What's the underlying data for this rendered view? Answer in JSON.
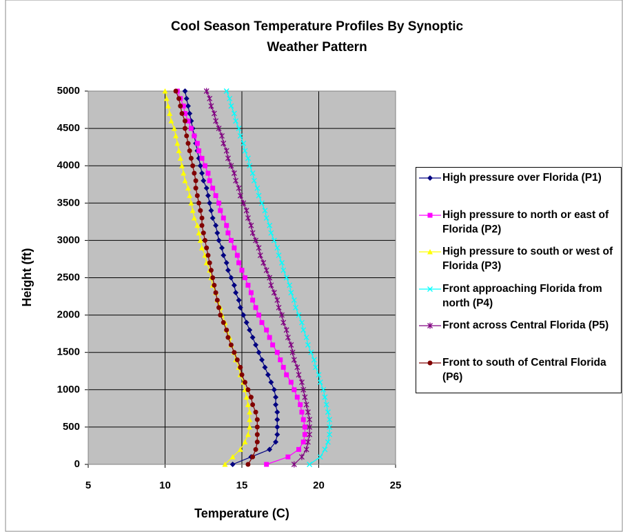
{
  "chart_data": {
    "type": "scatter-line",
    "title": "Cool Season Temperature Profiles By Synoptic Weather Pattern",
    "x_label": "Temperature (C)",
    "y_label": "Height (ft)",
    "xlim": [
      5,
      25
    ],
    "xticks": [
      5,
      10,
      15,
      20,
      25
    ],
    "ylim": [
      0,
      5000
    ],
    "yticks": [
      0,
      500,
      1000,
      1500,
      2000,
      2500,
      3000,
      3500,
      4000,
      4500,
      5000
    ],
    "grid": true,
    "legend": "right",
    "y": [
      0,
      100,
      200,
      300,
      400,
      500,
      600,
      700,
      800,
      900,
      1000,
      1100,
      1200,
      1300,
      1400,
      1500,
      1600,
      1700,
      1800,
      1900,
      2000,
      2100,
      2200,
      2300,
      2400,
      2500,
      2600,
      2700,
      2800,
      2900,
      3000,
      3100,
      3200,
      3300,
      3400,
      3500,
      3600,
      3700,
      3800,
      3900,
      4000,
      4100,
      4200,
      4300,
      4400,
      4500,
      4600,
      4700,
      4800,
      4900,
      5000
    ],
    "series": [
      {
        "name": "High pressure over Florida (P1)",
        "color": "#000080",
        "marker": "diamond",
        "x": [
          14.4,
          15.6,
          16.8,
          17.2,
          17.3,
          17.3,
          17.3,
          17.3,
          17.2,
          17.2,
          17.1,
          16.9,
          16.7,
          16.5,
          16.3,
          16.1,
          15.9,
          15.7,
          15.5,
          15.3,
          15.1,
          14.9,
          14.8,
          14.6,
          14.5,
          14.3,
          14.1,
          14.0,
          13.8,
          13.7,
          13.5,
          13.4,
          13.3,
          13.1,
          13.0,
          12.9,
          12.8,
          12.7,
          12.5,
          12.4,
          12.3,
          12.2,
          12.1,
          12.0,
          11.9,
          11.8,
          11.7,
          11.6,
          11.5,
          11.4,
          11.3
        ]
      },
      {
        "name": "High pressure to north or east of Florida (P2)",
        "color": "#ff00ff",
        "marker": "square",
        "x": [
          16.6,
          18.0,
          18.7,
          19.0,
          19.1,
          19.1,
          19.0,
          18.9,
          18.8,
          18.6,
          18.4,
          18.2,
          17.9,
          17.7,
          17.5,
          17.3,
          17.0,
          16.8,
          16.6,
          16.3,
          16.1,
          15.9,
          15.7,
          15.6,
          15.4,
          15.2,
          15.0,
          14.8,
          14.7,
          14.5,
          14.3,
          14.1,
          14.0,
          13.8,
          13.6,
          13.5,
          13.3,
          13.1,
          12.9,
          12.8,
          12.6,
          12.4,
          12.2,
          12.1,
          11.9,
          11.7,
          11.5,
          11.3,
          11.2,
          11.0,
          10.8
        ]
      },
      {
        "name": "High pressure to south or west of Florida (P3)",
        "color": "#ffff00",
        "marker": "triangle",
        "x": [
          13.9,
          14.4,
          14.9,
          15.2,
          15.4,
          15.5,
          15.5,
          15.5,
          15.4,
          15.3,
          15.2,
          15.1,
          14.9,
          14.8,
          14.6,
          14.5,
          14.3,
          14.2,
          14.0,
          13.9,
          13.7,
          13.6,
          13.4,
          13.3,
          13.1,
          13.0,
          12.9,
          12.7,
          12.6,
          12.4,
          12.3,
          12.2,
          12.1,
          11.9,
          11.8,
          11.7,
          11.6,
          11.5,
          11.3,
          11.2,
          11.1,
          11.0,
          10.9,
          10.8,
          10.7,
          10.6,
          10.4,
          10.3,
          10.2,
          10.1,
          10.0
        ]
      },
      {
        "name": "Front approaching Florida from north (P4)",
        "color": "#00ffff",
        "marker": "x",
        "x": [
          19.4,
          20.1,
          20.4,
          20.6,
          20.7,
          20.7,
          20.7,
          20.6,
          20.5,
          20.4,
          20.3,
          20.1,
          20.0,
          19.8,
          19.7,
          19.5,
          19.3,
          19.2,
          19.0,
          18.9,
          18.7,
          18.5,
          18.4,
          18.2,
          18.1,
          17.9,
          17.7,
          17.6,
          17.4,
          17.3,
          17.1,
          16.9,
          16.8,
          16.6,
          16.5,
          16.3,
          16.1,
          16.0,
          15.8,
          15.7,
          15.5,
          15.4,
          15.2,
          15.1,
          14.9,
          14.8,
          14.6,
          14.5,
          14.3,
          14.2,
          14.0
        ]
      },
      {
        "name": "Front across Central Florida (P5)",
        "color": "#800080",
        "marker": "star",
        "x": [
          18.4,
          18.9,
          19.2,
          19.3,
          19.4,
          19.4,
          19.4,
          19.3,
          19.2,
          19.1,
          19.0,
          18.9,
          18.7,
          18.6,
          18.4,
          18.3,
          18.2,
          18.0,
          17.9,
          17.7,
          17.6,
          17.4,
          17.3,
          17.1,
          16.9,
          16.8,
          16.6,
          16.4,
          16.2,
          16.1,
          15.9,
          15.7,
          15.6,
          15.4,
          15.3,
          15.1,
          14.9,
          14.8,
          14.6,
          14.5,
          14.3,
          14.1,
          14.0,
          13.8,
          13.7,
          13.5,
          13.3,
          13.2,
          13.0,
          12.9,
          12.7
        ]
      },
      {
        "name": "Front to south of Central Florida (P6)",
        "color": "#800000",
        "marker": "circle",
        "x": [
          15.4,
          15.7,
          15.9,
          16.0,
          16.0,
          16.0,
          16.0,
          15.9,
          15.7,
          15.6,
          15.4,
          15.2,
          15.0,
          14.9,
          14.7,
          14.5,
          14.3,
          14.1,
          14.0,
          13.8,
          13.6,
          13.5,
          13.4,
          13.3,
          13.2,
          13.1,
          13.0,
          12.9,
          12.8,
          12.7,
          12.6,
          12.5,
          12.4,
          12.4,
          12.3,
          12.2,
          12.1,
          12.0,
          12.0,
          11.9,
          11.8,
          11.7,
          11.6,
          11.5,
          11.4,
          11.3,
          11.3,
          11.1,
          11.0,
          10.9,
          10.7
        ]
      }
    ]
  }
}
